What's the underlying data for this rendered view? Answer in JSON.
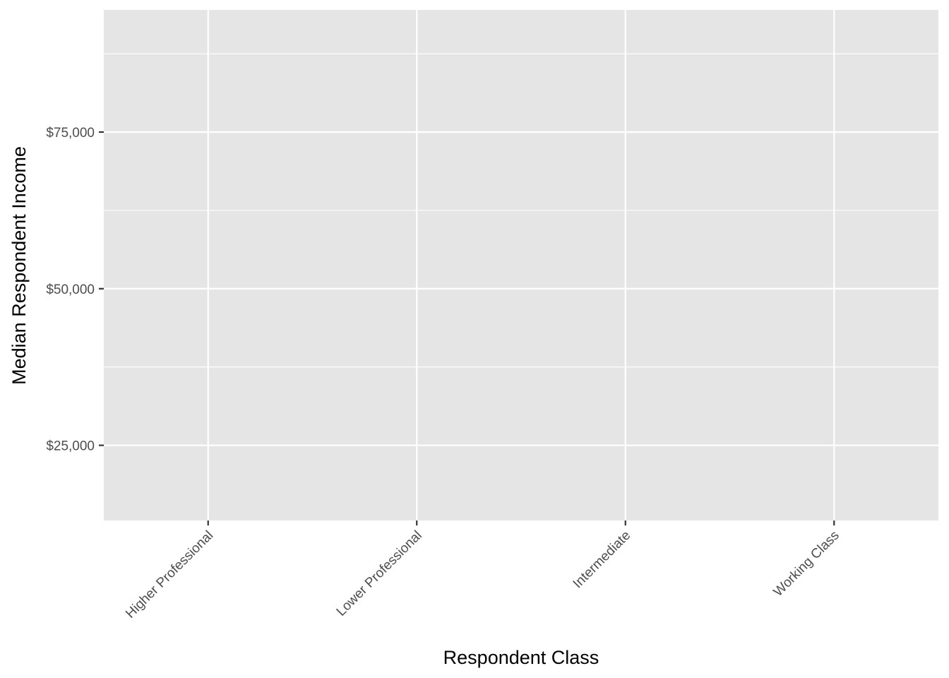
{
  "chart_data": {
    "type": "scatter",
    "title": "",
    "xlabel": "Respondent Class",
    "ylabel": "Median Respondent Income",
    "categories": [
      "Higher Professional",
      "Lower Professional",
      "Intermediate",
      "Working Class"
    ],
    "y_ticks": [
      {
        "value": 25000,
        "label": "$25,000"
      },
      {
        "value": 50000,
        "label": "$50,000"
      },
      {
        "value": 75000,
        "label": "$75,000"
      }
    ],
    "y_minor_ticks": [
      37500,
      62500,
      87500
    ],
    "ylim": [
      13000,
      94500
    ],
    "series": [],
    "grid": true,
    "legend": "none"
  },
  "colors": {
    "panel_background": "#e5e5e5",
    "grid": "#ffffff",
    "tick_mark": "#333333",
    "tick_label": "#4d4d4d",
    "axis_title": "#000000"
  }
}
